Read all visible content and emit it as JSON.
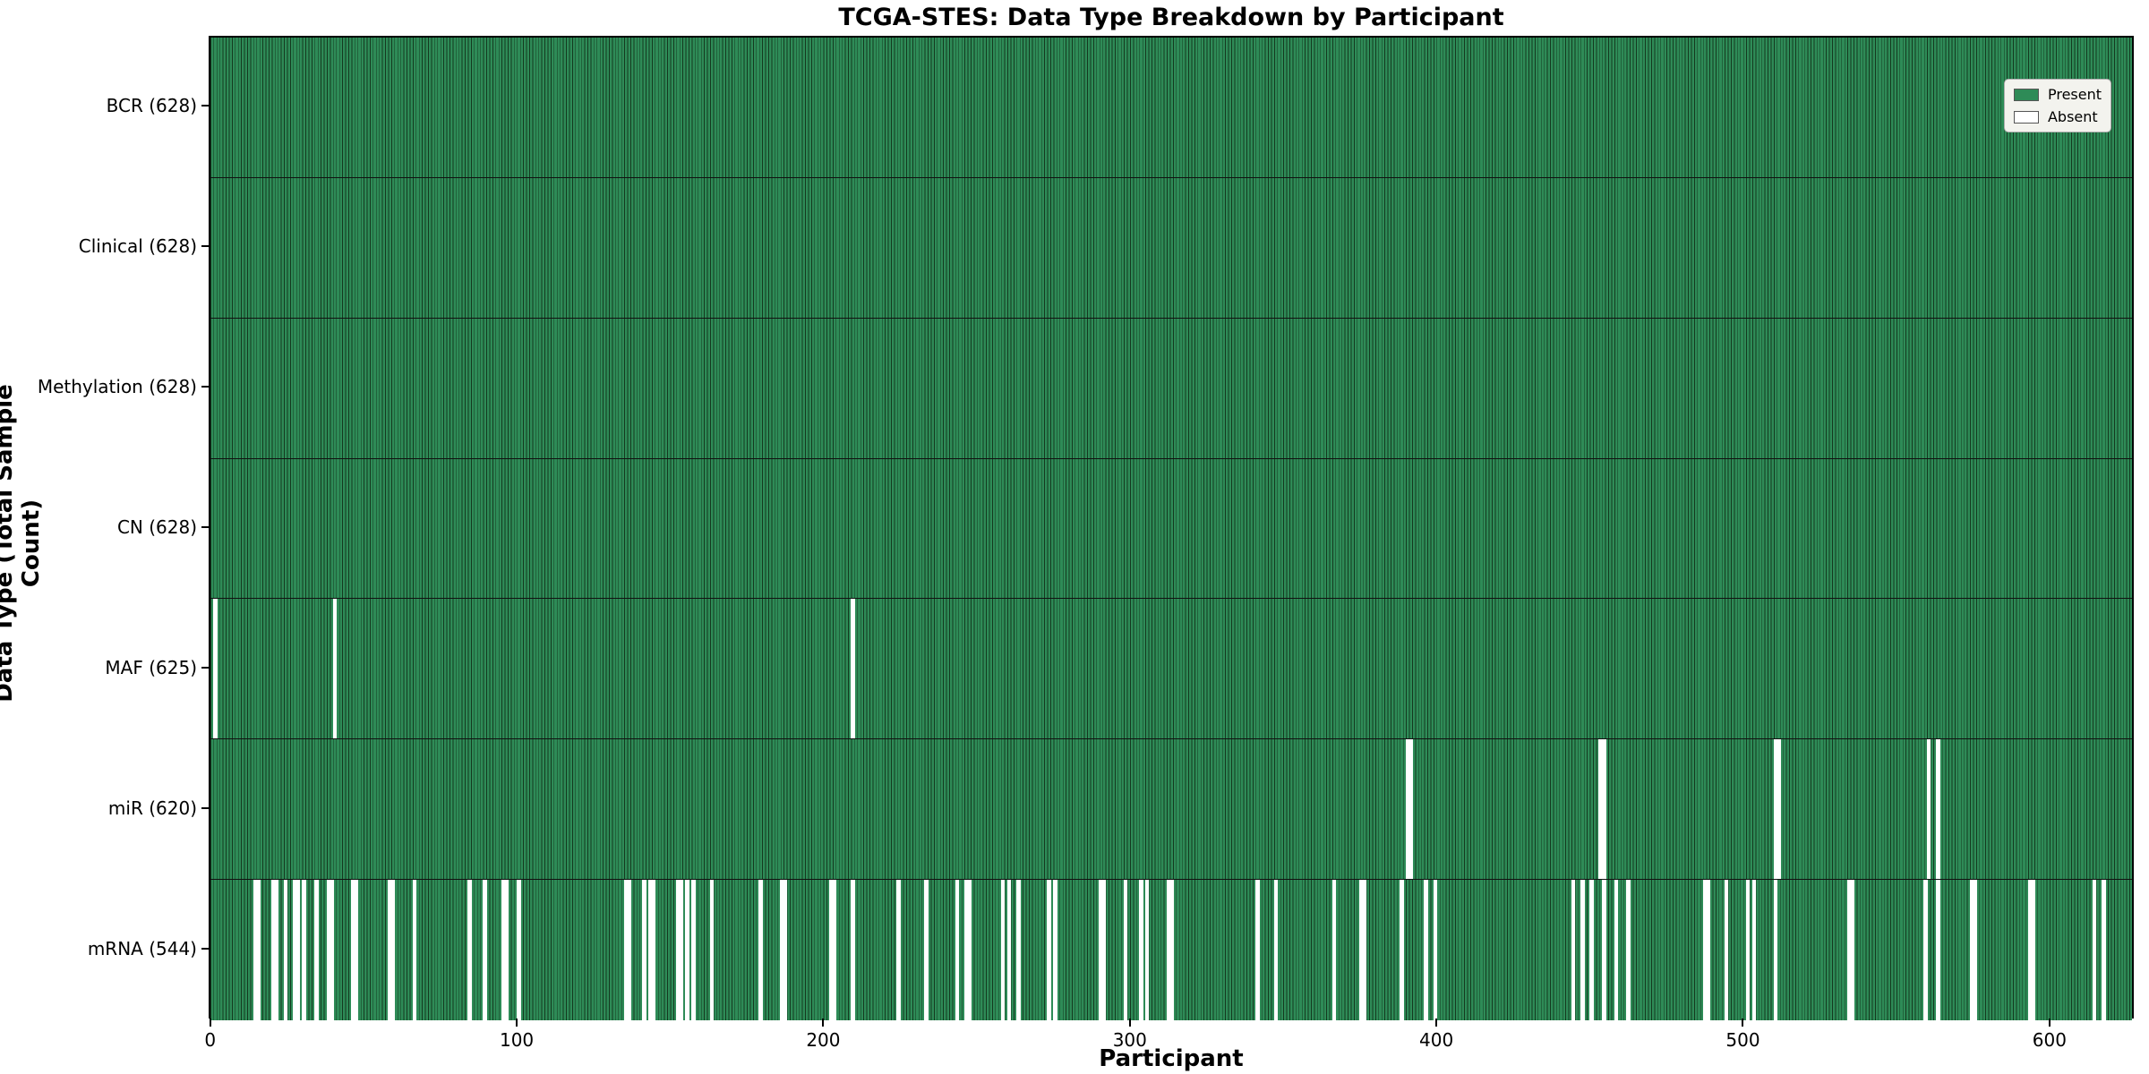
{
  "figure": {
    "title": "TCGA-STES: Data Type Breakdown by Participant",
    "xlabel": "Participant",
    "ylabel": "Data Type (Total Sample Count)"
  },
  "legend": {
    "present_label": "Present",
    "absent_label": "Absent"
  },
  "chart_data": {
    "type": "heatmap",
    "title": "TCGA-STES: Data Type Breakdown by Participant",
    "xlabel": "Participant",
    "ylabel": "Data Type (Total Sample Count)",
    "n_participants": 628,
    "x_ticks": [
      0,
      100,
      200,
      300,
      400,
      500,
      600
    ],
    "grid": false,
    "legend_position": "upper right",
    "legend": [
      {
        "label": "Present",
        "color": "#2e8b57"
      },
      {
        "label": "Absent",
        "color": "#ffffff"
      }
    ],
    "colors": {
      "present": "#2e8b57",
      "bar_edge": "#14391f",
      "absent": "#ffffff",
      "axis": "#000000",
      "legend_bg": "#f3f3ee"
    },
    "rows": [
      {
        "name": "BCR",
        "label": "BCR (628)",
        "present_count": 628,
        "absent_participants": []
      },
      {
        "name": "Clinical",
        "label": "Clinical (628)",
        "present_count": 628,
        "absent_participants": []
      },
      {
        "name": "Methylation",
        "label": "Methylation (628)",
        "present_count": 628,
        "absent_participants": []
      },
      {
        "name": "CN",
        "label": "CN (628)",
        "present_count": 628,
        "absent_participants": []
      },
      {
        "name": "MAF",
        "label": "MAF (625)",
        "present_count": 625,
        "absent_participants": [
          1,
          40,
          209
        ]
      },
      {
        "name": "miR",
        "label": "miR (620)",
        "present_count": 620,
        "absent_participants": [
          390,
          391,
          453,
          454,
          510,
          511,
          560,
          563
        ]
      },
      {
        "name": "mRNA",
        "label": "mRNA (544)",
        "present_count": 544,
        "absent_participants": [
          14,
          15,
          20,
          21,
          24,
          27,
          28,
          30,
          34,
          38,
          39,
          46,
          47,
          58,
          59,
          66,
          84,
          89,
          95,
          96,
          100,
          135,
          136,
          141,
          143,
          144,
          152,
          153,
          155,
          157,
          163,
          179,
          186,
          187,
          202,
          203,
          209,
          224,
          233,
          243,
          246,
          247,
          258,
          260,
          263,
          273,
          275,
          290,
          291,
          298,
          303,
          305,
          312,
          313,
          341,
          347,
          366,
          375,
          376,
          388,
          396,
          399,
          444,
          447,
          450,
          454,
          458,
          462,
          487,
          488,
          494,
          501,
          503,
          510,
          534,
          535,
          559,
          563,
          574,
          575,
          593,
          594,
          614,
          617
        ]
      }
    ]
  }
}
